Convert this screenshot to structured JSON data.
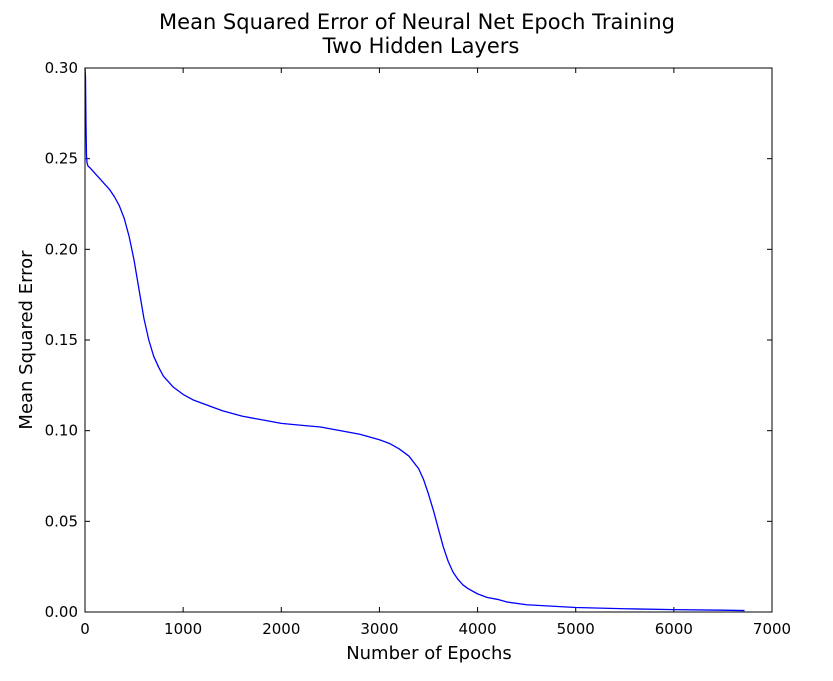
{
  "chart_data": {
    "type": "line",
    "title": "Mean Squared Error of Neural Net Epoch Training",
    "subtitle": "Two Hidden Layers",
    "xlabel": "Number of Epochs",
    "ylabel": "Mean Squared Error",
    "xlim": [
      0,
      7000
    ],
    "ylim": [
      0,
      0.3
    ],
    "xticks": [
      0,
      1000,
      2000,
      3000,
      4000,
      5000,
      6000,
      7000
    ],
    "xtick_labels": [
      "0",
      "1000",
      "2000",
      "3000",
      "4000",
      "5000",
      "6000",
      "7000"
    ],
    "yticks": [
      0,
      0.05,
      0.1,
      0.15,
      0.2,
      0.25,
      0.3
    ],
    "ytick_labels": [
      "0.00",
      "0.05",
      "0.10",
      "0.15",
      "0.20",
      "0.25",
      "0.30"
    ],
    "grid": false,
    "line_color": "#0000ff",
    "series": [
      {
        "x": [
          0,
          5,
          10,
          15,
          20,
          30,
          50,
          100,
          150,
          200,
          250,
          300,
          350,
          400,
          450,
          500,
          550,
          600,
          650,
          700,
          750,
          800,
          900,
          1000,
          1100,
          1200,
          1400,
          1600,
          1800,
          2000,
          2200,
          2400,
          2600,
          2800,
          3000,
          3100,
          3200,
          3300,
          3400,
          3450,
          3500,
          3550,
          3600,
          3650,
          3700,
          3750,
          3800,
          3850,
          3900,
          4000,
          4100,
          4200,
          4300,
          4500,
          5000,
          5500,
          6000,
          6500,
          6720
        ],
        "y": [
          0.3,
          0.295,
          0.27,
          0.252,
          0.248,
          0.246,
          0.245,
          0.242,
          0.239,
          0.236,
          0.233,
          0.229,
          0.224,
          0.217,
          0.207,
          0.194,
          0.178,
          0.162,
          0.15,
          0.141,
          0.135,
          0.13,
          0.124,
          0.12,
          0.117,
          0.115,
          0.111,
          0.108,
          0.106,
          0.104,
          0.103,
          0.102,
          0.1,
          0.098,
          0.095,
          0.093,
          0.09,
          0.086,
          0.079,
          0.073,
          0.065,
          0.056,
          0.046,
          0.036,
          0.028,
          0.022,
          0.018,
          0.015,
          0.013,
          0.01,
          0.008,
          0.007,
          0.0055,
          0.004,
          0.0025,
          0.0018,
          0.0013,
          0.001,
          0.0008
        ]
      }
    ]
  }
}
